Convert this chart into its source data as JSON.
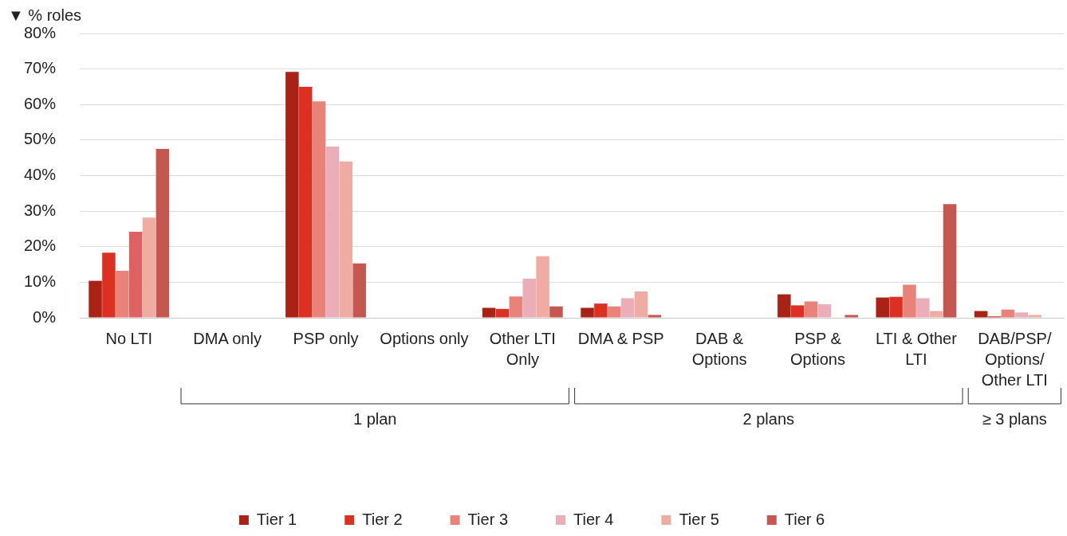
{
  "chart_data": {
    "type": "bar",
    "ylabel": "▼ % roles",
    "categories": [
      "No LTI",
      "DMA only",
      "PSP only",
      "Options only",
      "Other LTI Only",
      "DMA & PSP",
      "DAB & Options",
      "PSP & Options",
      "LTI & Other LTI",
      "DAB/PSP/Options/Other LTI"
    ],
    "series": [
      {
        "name": "Tier 1",
        "color": "#a82315",
        "values": [
          10.4,
          0,
          69.2,
          0,
          2.8,
          2.8,
          0,
          6.6,
          5.7,
          1.9
        ]
      },
      {
        "name": "Tier 2",
        "color": "#dc3122",
        "values": [
          18.3,
          0,
          65.0,
          0,
          2.5,
          4.0,
          0,
          3.5,
          5.9,
          0.4
        ]
      },
      {
        "name": "Tier 3",
        "color": "#e9837a",
        "values": [
          13.2,
          0,
          60.9,
          0,
          6.0,
          3.2,
          0,
          4.6,
          9.3,
          2.3
        ]
      },
      {
        "name": "Tier 4",
        "color": "#ebadb8",
        "colors": [
          "#dd6262",
          "#ebadb8",
          "#ebadb8",
          "#ebadb8",
          "#ebadb8",
          "#ebadb8",
          "#ebadb8",
          "#ebadb8",
          "#ebadb8",
          "#ebadb8"
        ],
        "values": [
          24.2,
          0.1,
          48.2,
          0,
          11.0,
          5.5,
          0,
          3.8,
          5.5,
          1.5
        ]
      },
      {
        "name": "Tier 5",
        "color": "#efaca3",
        "values": [
          28.2,
          0,
          44.0,
          0,
          17.3,
          7.4,
          0,
          0.1,
          1.9,
          0.8
        ]
      },
      {
        "name": "Tier 6",
        "color": "#c45850",
        "values": [
          47.5,
          0,
          15.3,
          0,
          3.2,
          0.8,
          0,
          0.8,
          32.0,
          0
        ]
      }
    ],
    "ylim": [
      0,
      80
    ],
    "yticks": [
      {
        "value": 0,
        "label": "0%"
      },
      {
        "value": 10,
        "label": "10%"
      },
      {
        "value": 20,
        "label": "20%"
      },
      {
        "value": 30,
        "label": "30%"
      },
      {
        "value": 40,
        "label": "40%"
      },
      {
        "value": 50,
        "label": "50%"
      },
      {
        "value": 60,
        "label": "60%"
      },
      {
        "value": 70,
        "label": "70%"
      },
      {
        "value": 80,
        "label": "80%"
      }
    ],
    "grid": "y",
    "legend": "bottom",
    "annotations": [
      "1 plan",
      "2 plans",
      "≥ 3 plans"
    ]
  }
}
